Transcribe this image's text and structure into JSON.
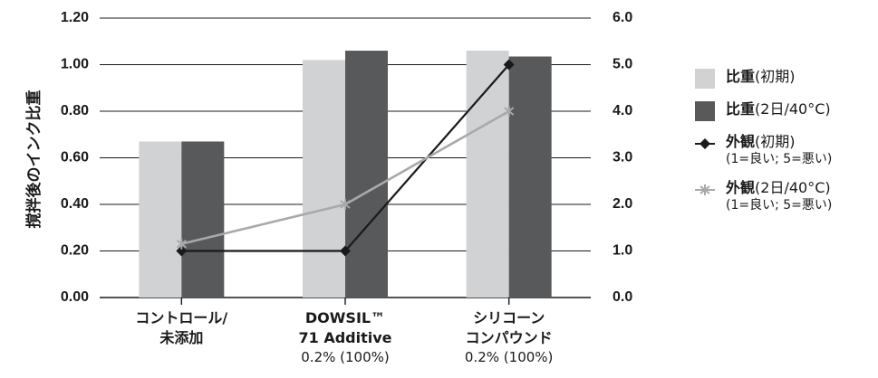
{
  "chart_data": {
    "type": "bar",
    "ylabel": "撹拌後のインク比重",
    "categories": [
      {
        "lines": [
          "コントロール/",
          "未添加"
        ],
        "note": ""
      },
      {
        "lines": [
          "DOWSIL™",
          "71 Additive"
        ],
        "note": "0.2% (100%)"
      },
      {
        "lines": [
          "シリコーン",
          "コンパウンド"
        ],
        "note": "0.2% (100%)"
      }
    ],
    "ylim": [
      0,
      1.2
    ],
    "y2lim": [
      0,
      6
    ],
    "y_ticks": [
      "0.00",
      "0.20",
      "0.40",
      "0.60",
      "0.80",
      "1.00",
      "1.20"
    ],
    "y2_ticks": [
      "0.0",
      "1.0",
      "2.0",
      "3.0",
      "4.0",
      "5.0",
      "6.0"
    ],
    "grid": true,
    "legend_position": "right",
    "bar_series": [
      {
        "name": "比重",
        "name_suffix": "(初期)",
        "values": [
          0.67,
          1.02,
          1.06
        ],
        "color": "#d1d2d4"
      },
      {
        "name": "比重",
        "name_suffix": "(2日/40°C)",
        "values": [
          0.67,
          1.06,
          1.035
        ],
        "color": "#58595b"
      }
    ],
    "line_series": [
      {
        "name": "外観",
        "name_suffix": "(初期)",
        "note": "(1=良い; 5=悪い)",
        "axis": "right",
        "marker": "diamond",
        "values": [
          1.0,
          1.0,
          5.0
        ],
        "color": "#1a1a1a"
      },
      {
        "name": "外観",
        "name_suffix": "(2日/40°C)",
        "note": "(1=良い; 5=悪い)",
        "axis": "right",
        "marker": "asterisk",
        "values": [
          1.15,
          2.0,
          4.0
        ],
        "color": "#a7a9ac"
      }
    ]
  }
}
